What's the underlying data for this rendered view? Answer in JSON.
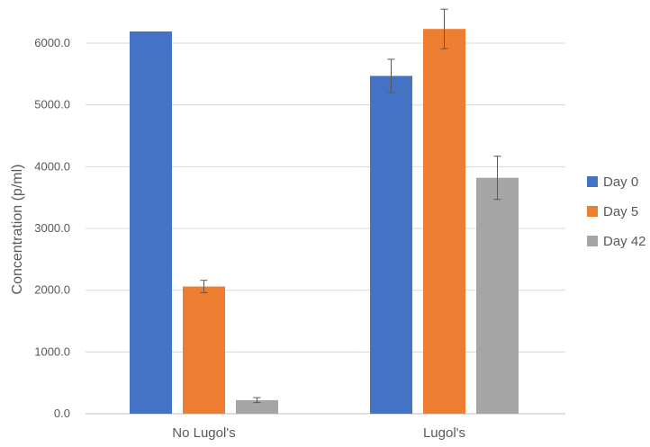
{
  "chart_data": {
    "type": "bar",
    "title": "",
    "xlabel": "",
    "ylabel": "Concentration (p/ml)",
    "categories": [
      "No Lugol's",
      "Lugol's"
    ],
    "series": [
      {
        "name": "Day 0",
        "color": "#4472c4",
        "values": [
          6190,
          5470
        ],
        "errors": [
          0,
          270
        ]
      },
      {
        "name": "Day 5",
        "color": "#ed7d31",
        "values": [
          2060,
          6230
        ],
        "errors": [
          100,
          320
        ]
      },
      {
        "name": "Day 42",
        "color": "#a5a5a5",
        "values": [
          220,
          3820
        ],
        "errors": [
          40,
          350
        ]
      }
    ],
    "ylim": [
      0,
      6500
    ],
    "yticks": [
      "0.0",
      "1000.0",
      "2000.0",
      "3000.0",
      "4000.0",
      "5000.0",
      "6000.0"
    ],
    "grid": true,
    "legend_position": "right"
  }
}
